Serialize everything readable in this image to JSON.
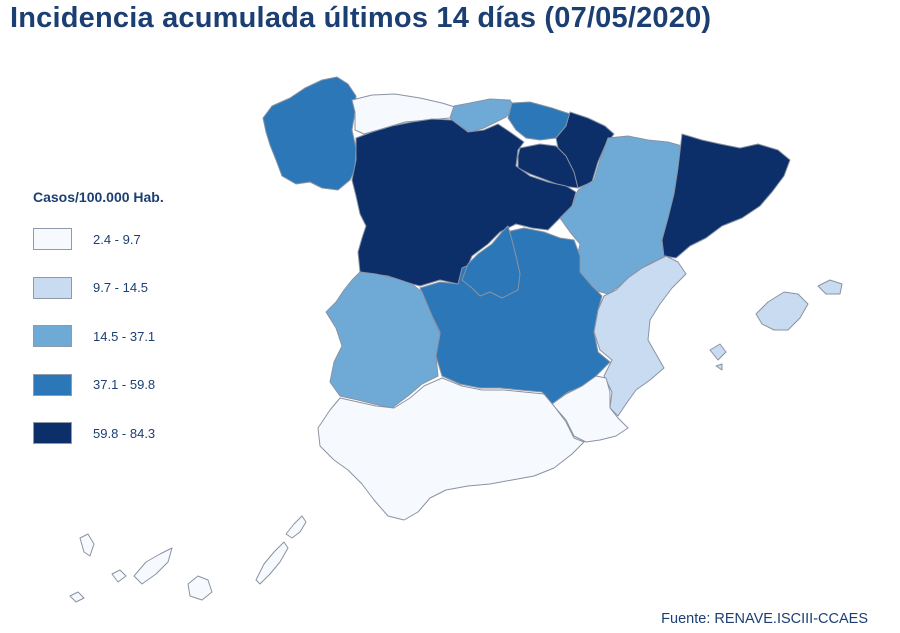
{
  "title": "Incidencia acumulada últimos 14 días (07/05/2020)",
  "legend": {
    "title": "Casos/100.000 Hab.",
    "items": [
      {
        "label": "2.4 - 9.7",
        "color": "#f6f9fd"
      },
      {
        "label": "9.7 - 14.5",
        "color": "#c8dbf0"
      },
      {
        "label": "14.5 - 37.1",
        "color": "#6faad6"
      },
      {
        "label": "37.1 - 59.8",
        "color": "#2c77b8"
      },
      {
        "label": "59.8 - 84.3",
        "color": "#0c2f69"
      }
    ]
  },
  "regions": {
    "galicia": "37.1 - 59.8",
    "asturias": "2.4 - 9.7",
    "cantabria": "14.5 - 37.1",
    "pais_vasco": "37.1 - 59.8",
    "navarra": "59.8 - 84.3",
    "la_rioja": "59.8 - 84.3",
    "castilla_y_leon": "59.8 - 84.3",
    "aragon": "14.5 - 37.1",
    "cataluna": "59.8 - 84.3",
    "madrid": "37.1 - 59.8",
    "castilla_la_mancha": "37.1 - 59.8",
    "extremadura": "14.5 - 37.1",
    "comunidad_valenciana": "9.7 - 14.5",
    "murcia": "2.4 - 9.7",
    "andalucia": "2.4 - 9.7",
    "islas_baleares": "9.7 - 14.5",
    "canarias": "2.4 - 9.7"
  },
  "source": "Fuente: RENAVE.ISCIII-CCAES"
}
